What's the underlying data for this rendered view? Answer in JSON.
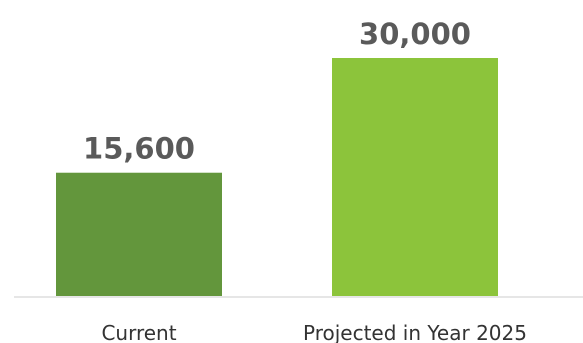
{
  "chart_data": {
    "type": "bar",
    "categories": [
      "Current",
      "Projected in Year 2025"
    ],
    "values": [
      15600,
      30000
    ],
    "data_labels": [
      "15,600",
      "30,000"
    ],
    "colors": [
      "#63963c",
      "#8cc43b"
    ],
    "baseline_color": "#e6e6e6",
    "ylim": [
      0,
      30000
    ],
    "grid": false,
    "legend": "none"
  }
}
